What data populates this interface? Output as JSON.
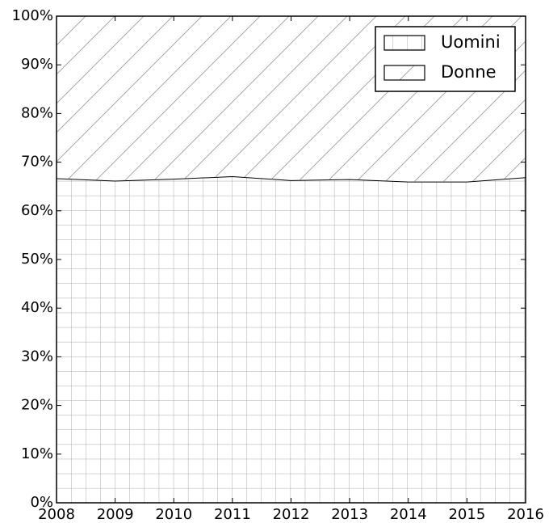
{
  "chart_data": {
    "type": "stacked_area",
    "x": [
      2008,
      2009,
      2010,
      2011,
      2012,
      2013,
      2014,
      2015,
      2016
    ],
    "series": [
      {
        "name": "Uomini",
        "color": "#ffffff",
        "hatch": "+",
        "values": [
          66.7,
          66.2,
          66.6,
          67.1,
          66.3,
          66.5,
          66.0,
          66.0,
          66.9
        ]
      },
      {
        "name": "Donne",
        "color": "#ffffff",
        "hatch": "/",
        "values": [
          33.3,
          33.8,
          33.4,
          32.9,
          33.7,
          33.5,
          34.0,
          34.0,
          33.1
        ]
      }
    ],
    "xlim": [
      2008,
      2016
    ],
    "xticks": [
      2008,
      2009,
      2010,
      2011,
      2012,
      2013,
      2014,
      2015,
      2016
    ],
    "ylim": [
      0,
      100
    ],
    "yticks": [
      {
        "value": 0,
        "label": "0%"
      },
      {
        "value": 10,
        "label": "10%"
      },
      {
        "value": 20,
        "label": "20%"
      },
      {
        "value": 30,
        "label": "30%"
      },
      {
        "value": 40,
        "label": "40%"
      },
      {
        "value": 50,
        "label": "50%"
      },
      {
        "value": 60,
        "label": "60%"
      },
      {
        "value": 70,
        "label": "70%"
      },
      {
        "value": 80,
        "label": "80%"
      },
      {
        "value": 90,
        "label": "90%"
      },
      {
        "value": 100,
        "label": "100%"
      }
    ],
    "legend": "upper right"
  }
}
